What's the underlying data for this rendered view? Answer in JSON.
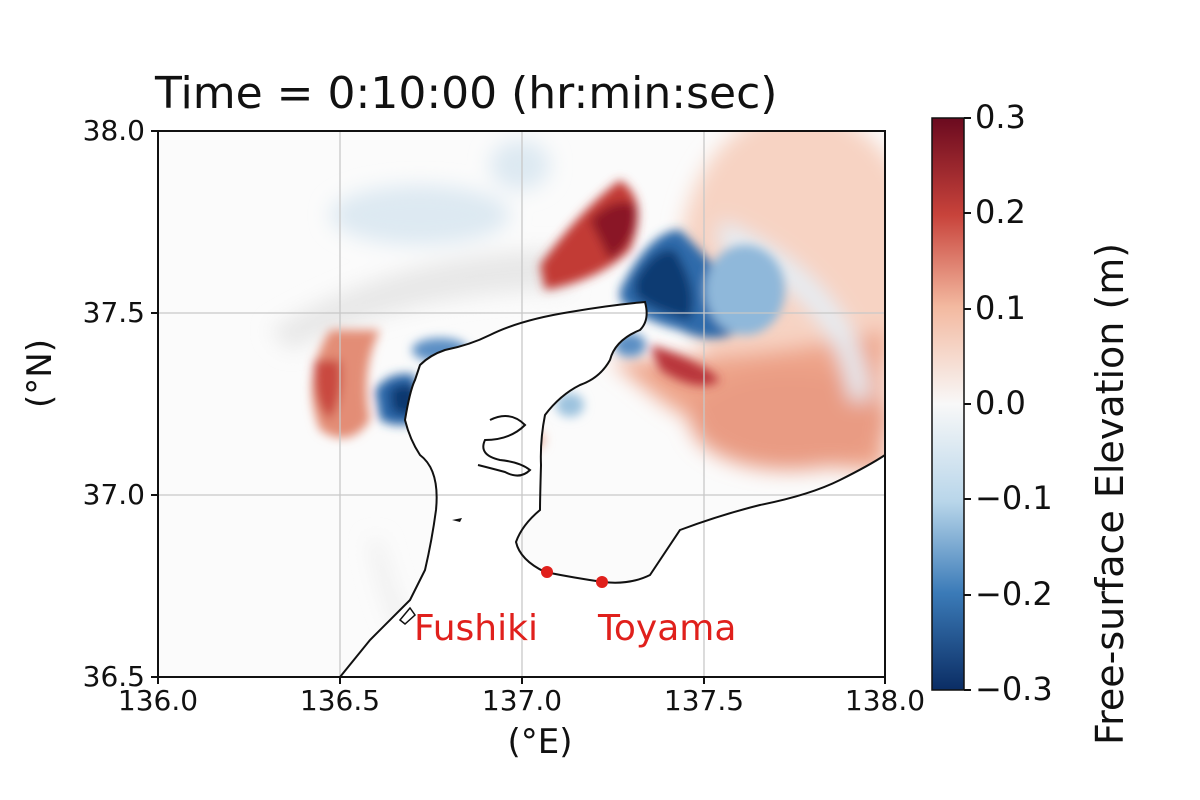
{
  "title": "Time = 0:10:00 (hr:min:sec)",
  "axes": {
    "xlabel": "(°E)",
    "ylabel": "(°N)",
    "xticks": [
      "136.0",
      "136.5",
      "137.0",
      "137.5",
      "138.0"
    ],
    "yticks": [
      "38.0",
      "37.5",
      "37.0",
      "36.5"
    ],
    "xlim": [
      136.0,
      138.0
    ],
    "ylim": [
      36.5,
      38.0
    ],
    "grid": true
  },
  "colorbar": {
    "label": "Free-surface Elevation (m)",
    "ticks": [
      "0.3",
      "0.2",
      "0.1",
      "0.0",
      "−0.1",
      "−0.2",
      "−0.3"
    ],
    "range": [
      -0.3,
      0.3
    ],
    "colormap": [
      "#0b2d64",
      "#3b7bb8",
      "#b9d6ea",
      "#f8f8f8",
      "#f3b9a0",
      "#c8433b",
      "#6b0a1f"
    ]
  },
  "stations": [
    {
      "name": "Fushiki",
      "lon": 137.08,
      "lat": 36.79
    },
    {
      "name": "Toyama",
      "lon": 137.23,
      "lat": 36.76
    }
  ],
  "colors": {
    "station": "#e0201c",
    "coastline": "#111111",
    "grid": "#c8c8c8"
  }
}
